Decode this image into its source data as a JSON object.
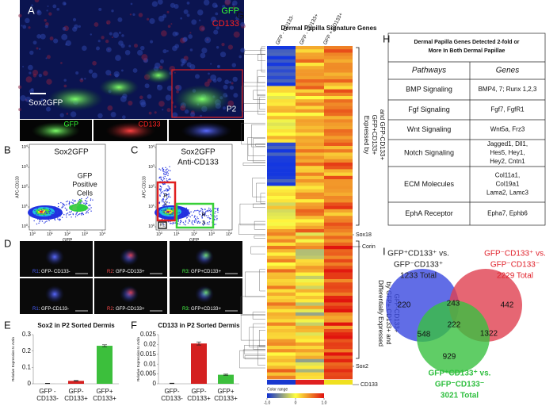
{
  "panelA": {
    "letter": "A",
    "markers": [
      "GFP",
      "CD133"
    ],
    "scale_label": "Sox2GFP",
    "region": "P2",
    "insets": [
      "GFP",
      "CD133"
    ]
  },
  "panelB": {
    "letter": "B",
    "title": "Sox2GFP",
    "annotation": [
      "GFP",
      "Positive",
      "Cells"
    ],
    "xlabel": "GFP",
    "ylabel": "APC-CD133",
    "tick_base": "10",
    "xtick_exps": [
      0,
      1,
      2,
      3,
      4
    ],
    "ytick_exps": [
      0,
      1,
      2,
      3,
      4
    ]
  },
  "panelC": {
    "letter": "C",
    "title": [
      "Sox2GFP",
      "Anti-CD133"
    ],
    "xlabel": "GFP",
    "ylabel": "APC-CD133",
    "tick_base": "10",
    "xtick_exps": [
      0,
      1,
      2,
      3,
      4
    ],
    "ytick_exps": [
      0,
      1,
      2,
      3,
      4
    ],
    "gates": [
      [
        "R",
        "2"
      ],
      [
        "R1"
      ],
      [
        "R",
        "3"
      ]
    ]
  },
  "panelD": {
    "letter": "D",
    "cells": [
      [
        [
          "R1",
          ": GFP- CD133-"
        ],
        [
          "R2",
          ": GFP-CD133+"
        ],
        [
          "R3",
          ": GFP+CD133+"
        ]
      ],
      [
        [
          "R1",
          ": GFP-CD133-"
        ],
        [
          "R2",
          ": GFP-CD133+"
        ],
        [
          "R3",
          ": GFP+CD133+"
        ]
      ]
    ]
  },
  "chart_data": [
    {
      "type": "bar",
      "letter": "E",
      "title": "Sox2 in P2 Sorted Dermis",
      "ylabel": "Relative Expression  to Actin",
      "categories": [
        [
          "GFP -",
          "CD133-"
        ],
        [
          "GFP-",
          "CD133+"
        ],
        [
          "GFP+",
          "CD133+"
        ]
      ],
      "values": [
        0.002,
        0.018,
        0.232
      ],
      "errors": [
        0.001,
        0.002,
        0.006
      ],
      "colors": [
        "#bdbdbd",
        "#d42020",
        "#3cbf3c"
      ],
      "ylim": [
        0,
        0.3
      ],
      "yticks": [
        0,
        0.1,
        0.2,
        0.3
      ]
    },
    {
      "type": "bar",
      "letter": "F",
      "title": "CD133 in P2 Sorted Dermis",
      "ylabel": "Relative Expression  to Actin",
      "categories": [
        [
          "GFP-",
          "CD133-"
        ],
        [
          "GFP-",
          "CD133+"
        ],
        [
          "GFP+",
          "CD133+"
        ]
      ],
      "values": [
        0.0002,
        0.0205,
        0.0046
      ],
      "errors": [
        0.0001,
        0.0008,
        0.0003
      ],
      "colors": [
        "#bdbdbd",
        "#d42020",
        "#3cbf3c"
      ],
      "ylim": [
        0,
        0.025
      ],
      "yticks": [
        0,
        0.005,
        0.01,
        0.015,
        0.02,
        0.025
      ]
    }
  ],
  "panelG": {
    "letter": "G",
    "title": "Dermal Papilla Signature Genes",
    "columns": [
      "GFP - CD133-",
      "GFP - CD133+",
      "GFP + CD133+"
    ],
    "group1": [
      "Expressed by",
      "GFP+CD133+",
      "and GFP-CD133+"
    ],
    "group2": [
      "Differentially Expressed",
      "by GFP+ CD133+ and",
      "GFP-CD133+"
    ],
    "genes": [
      "Sox18",
      "Corin",
      "Sox2",
      "CD133"
    ],
    "legend_title": "Color range",
    "legend_ticks": [
      {
        "value": -1,
        "label": "-1.0"
      },
      0,
      {
        "value": 1,
        "label": "1.0"
      }
    ]
  },
  "panelH": {
    "letter": "H",
    "title": [
      "Dermal Papilla Genes Detected 2-fold or",
      "More In Both Dermal Papillae"
    ],
    "header": [
      "Pathways",
      "Genes"
    ],
    "rows": [
      [
        "BMP Signaling",
        [
          "BMP4, 7; Runx 1,2,3"
        ]
      ],
      [
        "Fgf Signaling",
        [
          "Fgf7, FgfR1"
        ]
      ],
      [
        "Wnt Signaling",
        [
          "Wnt5a, Frz3"
        ]
      ],
      [
        "Notch Signaling",
        [
          "Jagged1, Dll1,",
          "Hes5, Hey1,",
          "Hey2, Cntn1"
        ]
      ],
      [
        "ECM Molecules",
        [
          "Col11a1,",
          "Col19a1",
          "Lama2, Lamc3"
        ]
      ],
      [
        "EphA Receptor",
        [
          "Epha7, Ephb6"
        ]
      ]
    ]
  },
  "panelI": {
    "letter": "I",
    "sets": [
      {
        "lines": [
          "GFP⁺CD133⁺ vs.",
          "GFP⁻CD133⁺",
          "1233 Total"
        ],
        "color": "#222222"
      },
      {
        "lines": [
          "GFP⁻CD133⁺ vs.",
          "GFP⁻CD133⁻",
          "2229 Total"
        ],
        "color": "#e0202a"
      },
      {
        "lines": [
          "GFP⁺CD133⁺ vs.",
          "GFP⁻CD133⁻",
          "3021 Total"
        ],
        "color": "#2fbf3f"
      }
    ],
    "regions": [
      220,
      243,
      442,
      222,
      548,
      1322,
      929
    ]
  }
}
